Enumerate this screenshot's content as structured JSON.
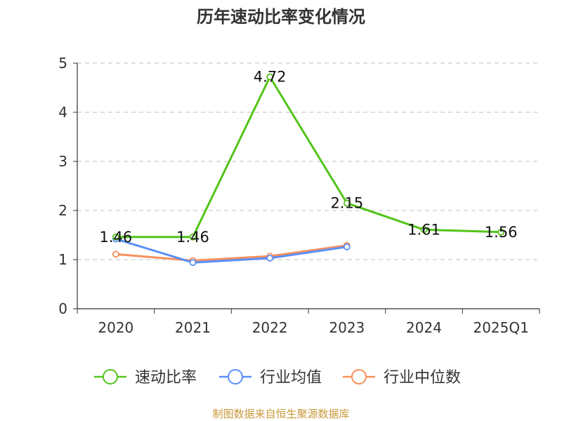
{
  "chart_data": {
    "type": "line",
    "title": "历年速动比率变化情况",
    "categories": [
      "2020",
      "2021",
      "2022",
      "2023",
      "2024",
      "2025Q1"
    ],
    "ylim": [
      0,
      5
    ],
    "yticks": [
      "0",
      "1",
      "2",
      "3",
      "4",
      "5"
    ],
    "grid": true,
    "legend_position": "bottom",
    "series": [
      {
        "name": "速动比率",
        "color": "#52c41a",
        "values": [
          1.46,
          1.46,
          4.72,
          2.15,
          1.61,
          1.56
        ],
        "labels": [
          "1.46",
          "1.46",
          "4.72",
          "2.15",
          "1.61",
          "1.56"
        ]
      },
      {
        "name": "行业均值",
        "color": "#5b8ff9",
        "values": [
          1.42,
          0.94,
          1.03,
          1.26,
          null,
          null
        ]
      },
      {
        "name": "行业中位数",
        "color": "#f6905c",
        "values": [
          1.11,
          0.98,
          1.07,
          1.29,
          null,
          null
        ]
      }
    ]
  },
  "source_text": "制图数据来自恒生聚源数据库"
}
